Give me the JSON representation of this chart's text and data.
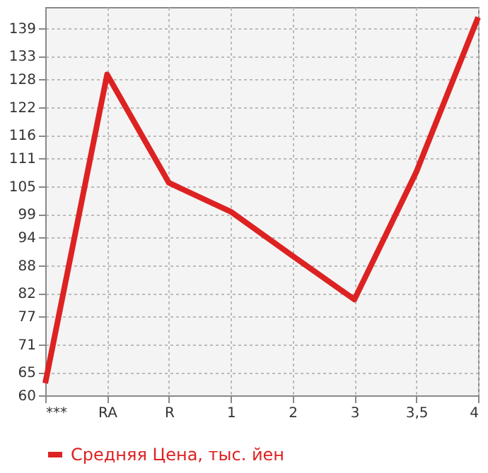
{
  "chart_data": {
    "type": "line",
    "categories": [
      "***",
      "RA",
      "R",
      "1",
      "2",
      "3",
      "3,5",
      "4"
    ],
    "series": [
      {
        "name": "Средняя Цена, тыс. йен",
        "color": "#dd2222",
        "values": [
          62.6,
          129,
          105.7,
          99.5,
          90,
          80.6,
          108,
          141.3
        ]
      }
    ],
    "ylim": [
      60,
      143.5
    ],
    "yticks": [
      60,
      65,
      71,
      77,
      82,
      88,
      94,
      99,
      105,
      111,
      116,
      122,
      128,
      133,
      139
    ],
    "grid": true,
    "legend": "bottom left",
    "marker": "none",
    "line_style": "solid"
  }
}
